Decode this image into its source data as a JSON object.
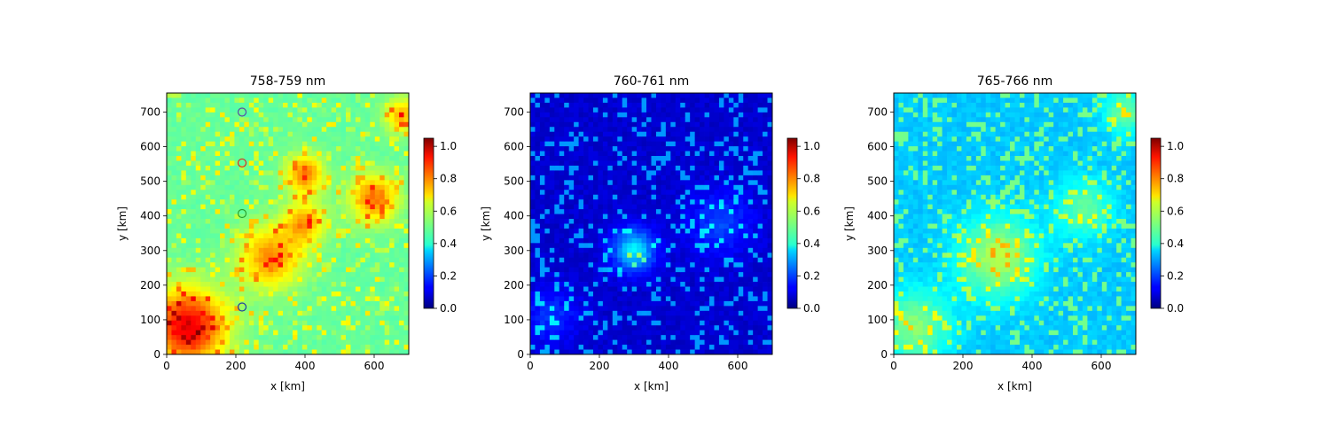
{
  "chart_data": [
    {
      "type": "heatmap",
      "title": "758-759 nm",
      "xlabel": "x [km]",
      "ylabel": "y [km]",
      "xlim": [
        0,
        700
      ],
      "ylim": [
        0,
        755
      ],
      "xticks": [
        0,
        200,
        400,
        600
      ],
      "yticks": [
        0,
        100,
        200,
        300,
        400,
        500,
        600,
        700
      ],
      "colormap": "jet",
      "clim": [
        0.0,
        1.05
      ],
      "colorbar_ticks": [
        "0.0",
        "0.2",
        "0.4",
        "0.6",
        "0.8",
        "1.0"
      ],
      "background_value": 0.5,
      "markers": [
        {
          "x": 218,
          "y": 700,
          "color": "#5a4fa0"
        },
        {
          "x": 218,
          "y": 553,
          "color": "#d62728"
        },
        {
          "x": 218,
          "y": 407,
          "color": "#2ca02c"
        },
        {
          "x": 218,
          "y": 137,
          "color": "#1f3fa0"
        }
      ]
    },
    {
      "type": "heatmap",
      "title": "760-761 nm",
      "xlabel": "x [km]",
      "ylabel": "y [km]",
      "xlim": [
        0,
        700
      ],
      "ylim": [
        0,
        755
      ],
      "xticks": [
        0,
        200,
        400,
        600
      ],
      "yticks": [
        0,
        100,
        200,
        300,
        400,
        500,
        600,
        700
      ],
      "colormap": "jet",
      "clim": [
        0.0,
        1.05
      ],
      "colorbar_ticks": [
        "0.0",
        "0.2",
        "0.4",
        "0.6",
        "0.8",
        "1.0"
      ],
      "background_value": 0.08
    },
    {
      "type": "heatmap",
      "title": "765-766 nm",
      "xlabel": "x [km]",
      "ylabel": "y [km]",
      "xlim": [
        0,
        700
      ],
      "ylim": [
        0,
        755
      ],
      "xticks": [
        0,
        200,
        400,
        600
      ],
      "yticks": [
        0,
        100,
        200,
        300,
        400,
        500,
        600,
        700
      ],
      "colormap": "jet",
      "clim": [
        0.0,
        1.05
      ],
      "colorbar_ticks": [
        "0.0",
        "0.2",
        "0.4",
        "0.6",
        "0.8",
        "1.0"
      ],
      "background_value": 0.35
    }
  ]
}
